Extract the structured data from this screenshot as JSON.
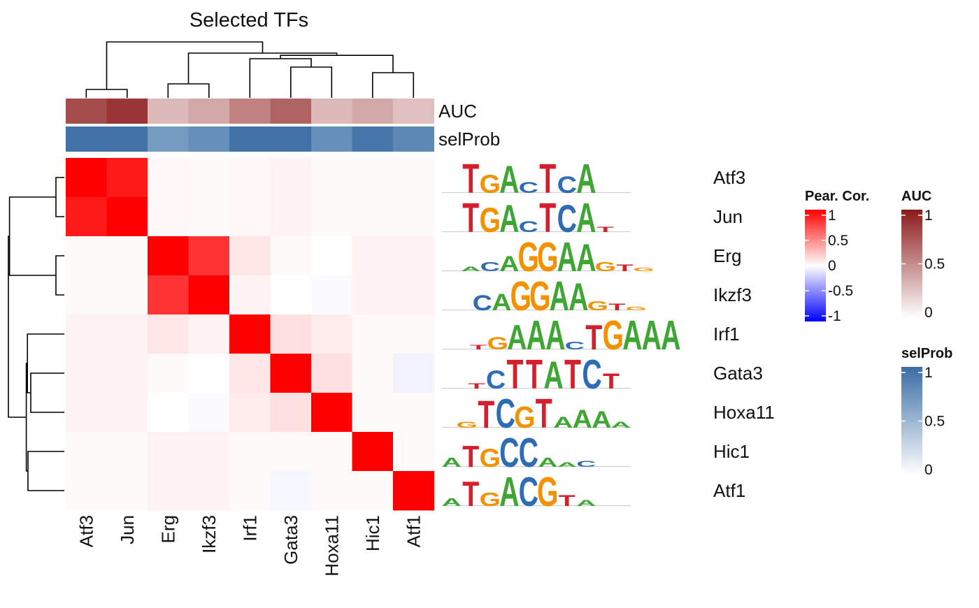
{
  "chart_data": {
    "type": "heatmap",
    "title": "Selected TFs",
    "rows": [
      "Atf3",
      "Jun",
      "Erg",
      "Ikzf3",
      "Irf1",
      "Gata3",
      "Hoxa11",
      "Hic1",
      "Atf1"
    ],
    "columns": [
      "Atf3",
      "Jun",
      "Erg",
      "Ikzf3",
      "Irf1",
      "Gata3",
      "Hoxa11",
      "Hic1",
      "Atf1"
    ],
    "values": [
      [
        1.0,
        0.9,
        0.03,
        0.02,
        0.03,
        0.05,
        0.02,
        0.02,
        0.02
      ],
      [
        0.9,
        1.0,
        0.03,
        0.02,
        0.03,
        0.05,
        0.02,
        0.02,
        0.02
      ],
      [
        0.02,
        0.02,
        1.0,
        0.8,
        0.1,
        0.02,
        0.0,
        0.05,
        0.05
      ],
      [
        0.02,
        0.02,
        0.8,
        1.0,
        0.05,
        0.0,
        -0.02,
        0.05,
        0.05
      ],
      [
        0.05,
        0.05,
        0.1,
        0.05,
        1.0,
        0.12,
        0.07,
        0.02,
        0.02
      ],
      [
        0.05,
        0.05,
        0.02,
        0.0,
        0.1,
        1.0,
        0.12,
        0.02,
        -0.05
      ],
      [
        0.05,
        0.05,
        0.0,
        -0.02,
        0.07,
        0.12,
        1.0,
        0.02,
        0.02
      ],
      [
        0.02,
        0.02,
        0.05,
        0.05,
        0.02,
        0.02,
        0.02,
        1.0,
        0.02
      ],
      [
        0.02,
        0.02,
        0.05,
        0.05,
        0.02,
        -0.03,
        0.02,
        0.02,
        1.0
      ]
    ],
    "annotations": {
      "AUC": [
        0.78,
        0.88,
        0.3,
        0.38,
        0.55,
        0.68,
        0.3,
        0.38,
        0.28
      ],
      "selProb": [
        0.97,
        0.97,
        0.7,
        0.78,
        0.97,
        0.97,
        0.78,
        0.94,
        0.82
      ]
    },
    "annotation_labels": [
      "AUC",
      "selProb"
    ],
    "column_dendrogram": [
      {
        "left": 0,
        "right": 1,
        "height": 0.15
      },
      {
        "left": 2,
        "right": 3,
        "height": 0.25
      },
      {
        "left": 7,
        "right": 8,
        "height": 0.45
      },
      {
        "left": 5,
        "right": 6,
        "height": 0.55
      },
      {
        "left": "n4",
        "right": 4,
        "height": 0.7
      },
      {
        "left": "n5",
        "right": "n3",
        "height": 0.76
      },
      {
        "left": "n2",
        "right": "n6",
        "height": 0.8
      },
      {
        "left": "n1",
        "right": "n7",
        "height": 1.0
      }
    ],
    "row_dendrogram": [
      {
        "left": 0,
        "right": 1,
        "height": 0.15
      },
      {
        "left": 2,
        "right": 3,
        "height": 0.15
      },
      {
        "left": 5,
        "right": 6,
        "height": 0.6
      },
      {
        "left": 7,
        "right": 8,
        "height": 0.65
      },
      {
        "left": "n3",
        "right": 4,
        "height": 0.66
      },
      {
        "left": "n5",
        "right": "n4",
        "height": 0.68
      },
      {
        "left": "n1",
        "right": "n2",
        "height": 0.98
      },
      {
        "left": "n7",
        "right": "n6",
        "height": 1.0
      }
    ],
    "motifs": [
      {
        "name": "Atf3",
        "seq": [
          "T",
          "G",
          "A",
          "C",
          "T",
          "C",
          "A"
        ],
        "h": [
          0.95,
          0.6,
          0.9,
          0.35,
          0.95,
          0.55,
          0.95
        ],
        "lead": 1.0
      },
      {
        "name": "Jun",
        "seq": [
          "T",
          "G",
          "A",
          "C",
          "T",
          "C",
          "A",
          "T"
        ],
        "h": [
          0.95,
          0.8,
          0.9,
          0.35,
          0.95,
          0.9,
          0.95,
          0.18
        ],
        "lead": 1.0
      },
      {
        "name": "Erg",
        "seq": [
          "A",
          "C",
          "A",
          "G",
          "G",
          "A",
          "A",
          "G",
          "T",
          "G"
        ],
        "h": [
          0.15,
          0.3,
          0.5,
          0.95,
          0.95,
          0.95,
          0.9,
          0.3,
          0.22,
          0.12
        ],
        "lead": 1.0
      },
      {
        "name": "Ikzf3",
        "seq": [
          "C",
          "A",
          "G",
          "G",
          "A",
          "A",
          "G",
          "T",
          "G"
        ],
        "h": [
          0.5,
          0.55,
          0.95,
          0.95,
          0.95,
          0.9,
          0.3,
          0.22,
          0.12
        ],
        "lead": 1.6
      },
      {
        "name": "Irf1",
        "seq": [
          "T",
          "G",
          "A",
          "A",
          "A",
          "C",
          "T",
          "G",
          "A",
          "A",
          "A"
        ],
        "h": [
          0.15,
          0.4,
          0.8,
          0.95,
          0.95,
          0.25,
          0.8,
          0.95,
          0.95,
          0.95,
          0.95
        ],
        "lead": 1.4
      },
      {
        "name": "Gata3",
        "seq": [
          "T",
          "C",
          "T",
          "T",
          "A",
          "T",
          "C",
          "T"
        ],
        "h": [
          0.18,
          0.6,
          0.95,
          0.95,
          0.9,
          0.95,
          0.95,
          0.5
        ],
        "lead": 1.3
      },
      {
        "name": "Hoxa11",
        "seq": [
          "G",
          "T",
          "C",
          "G",
          "T",
          "A",
          "A",
          "A",
          "A"
        ],
        "h": [
          0.2,
          0.9,
          0.95,
          0.7,
          0.95,
          0.35,
          0.6,
          0.55,
          0.2
        ],
        "lead": 0.8
      },
      {
        "name": "Hic1",
        "seq": [
          "A",
          "T",
          "G",
          "C",
          "C",
          "A",
          "A",
          "C"
        ],
        "h": [
          0.3,
          0.7,
          0.6,
          0.95,
          0.95,
          0.3,
          0.15,
          0.2
        ],
        "lead": 0.0
      },
      {
        "name": "Atf1",
        "seq": [
          "A",
          "T",
          "G",
          "A",
          "C",
          "G",
          "T",
          "A"
        ],
        "h": [
          0.25,
          0.8,
          0.45,
          0.95,
          0.95,
          0.95,
          0.35,
          0.2
        ],
        "lead": 0.0
      }
    ],
    "legends": [
      {
        "title": "Pear. Cor.",
        "ticks": [
          "1",
          "0.5",
          "0",
          "-0.5",
          "-1"
        ],
        "colors": [
          "#ff0000",
          "#ffffff",
          "#0000ff"
        ]
      },
      {
        "title": "AUC",
        "ticks": [
          "1",
          "0.5",
          "0"
        ],
        "colors": [
          "#8b1a1a",
          "#ffffff"
        ]
      },
      {
        "title": "selProb",
        "ticks": [
          "1",
          "0.5",
          "0"
        ],
        "colors": [
          "#3a6ea5",
          "#ffffff"
        ]
      }
    ],
    "colors": {
      "cor_pos": "#ff0000",
      "cor_neg": "#0000ff",
      "auc_high": "#8b1a1a",
      "selprob_high": "#3a6ea5",
      "base_A": "#3fa535",
      "base_C": "#2e6db4",
      "base_G": "#f39200",
      "base_T": "#d4202c"
    }
  }
}
